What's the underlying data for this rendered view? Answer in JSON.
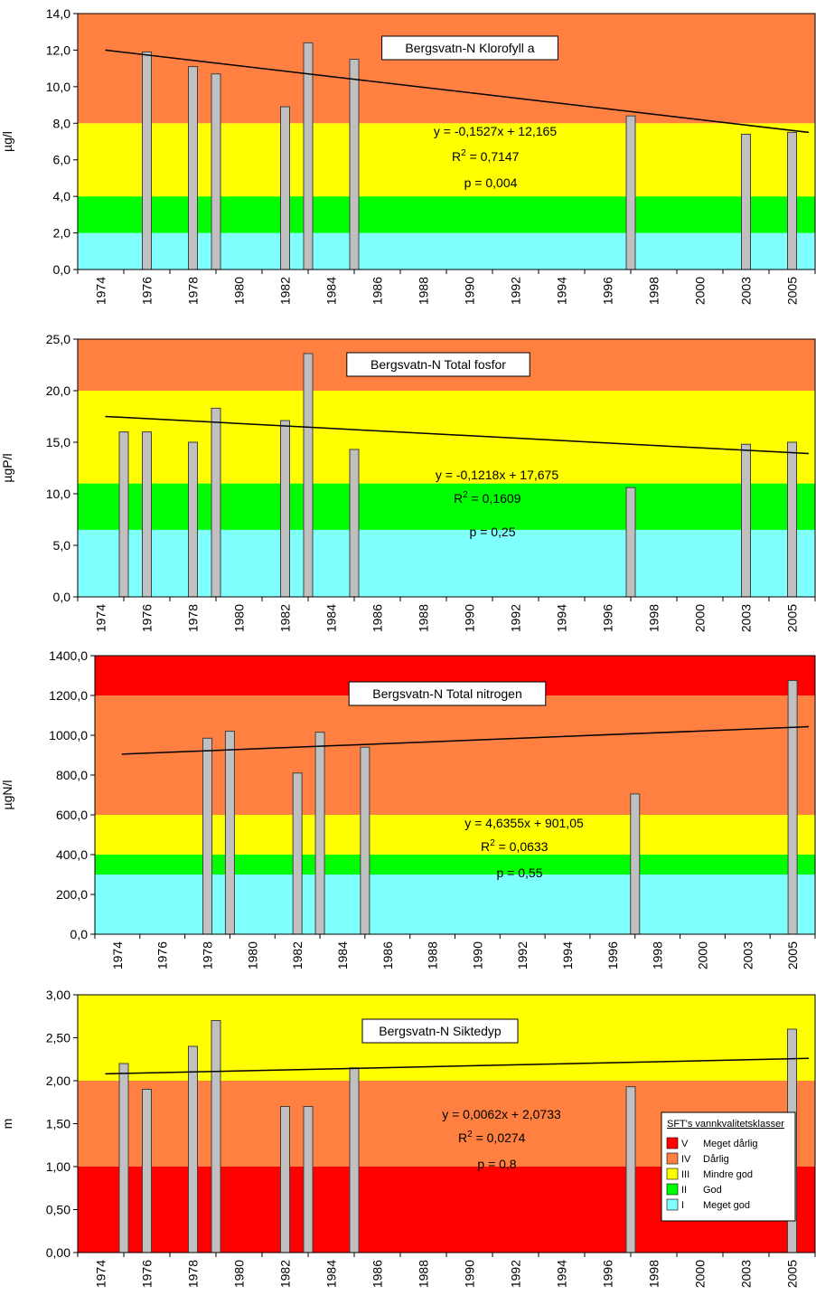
{
  "classes": [
    {
      "roman": "V",
      "name": "Meget dårlig",
      "color": "#ff0000"
    },
    {
      "roman": "IV",
      "name": "Dårlig",
      "color": "#ff8040"
    },
    {
      "roman": "III",
      "name": "Mindre god",
      "color": "#ffff00"
    },
    {
      "roman": "II",
      "name": "God",
      "color": "#00ff00"
    },
    {
      "roman": "I",
      "name": "Meget god",
      "color": "#80ffff"
    }
  ],
  "legend_title": "SFT's vannkvalitetsklasser",
  "chart_data": [
    {
      "type": "bar",
      "title": "Bergsvatn-N Klorofyll a",
      "ylabel": "µg/l",
      "ylim": [
        0,
        14
      ],
      "yticks": [
        "0,0",
        "2,0",
        "4,0",
        "6,0",
        "8,0",
        "10,0",
        "12,0",
        "14,0"
      ],
      "categories": [
        "1974",
        "1976",
        "1978",
        "1980",
        "1982",
        "1984",
        "1986",
        "1988",
        "1990",
        "1992",
        "1994",
        "1996",
        "1998",
        "2000",
        "2003",
        "2005"
      ],
      "bars": [
        {
          "year": 1976,
          "value": 11.9
        },
        {
          "year": 1978,
          "value": 11.1
        },
        {
          "year": 1979,
          "value": 10.7
        },
        {
          "year": 1982,
          "value": 8.9
        },
        {
          "year": 1983,
          "value": 12.4
        },
        {
          "year": 1985,
          "value": 11.5
        },
        {
          "year": 1997,
          "value": 8.4
        },
        {
          "year": 2003,
          "value": 7.4
        },
        {
          "year": 2005,
          "value": 7.5
        }
      ],
      "bands": [
        {
          "from": 0,
          "to": 2,
          "class": "I"
        },
        {
          "from": 2,
          "to": 4,
          "class": "II"
        },
        {
          "from": 4,
          "to": 8,
          "class": "III"
        },
        {
          "from": 8,
          "to": 14,
          "class": "IV"
        }
      ],
      "trend": {
        "start": 12.0,
        "end": 7.5
      },
      "equation": "y = -0,1527x + 12,165",
      "r2_label": "R",
      "r2_value": " = 0,7147",
      "p_label": "p = 0,004"
    },
    {
      "type": "bar",
      "title": "Bergsvatn-N Total fosfor",
      "ylabel": "µgP/l",
      "ylim": [
        0,
        25
      ],
      "yticks": [
        "0,0",
        "5,0",
        "10,0",
        "15,0",
        "20,0",
        "25,0"
      ],
      "categories": [
        "1974",
        "1976",
        "1978",
        "1980",
        "1982",
        "1984",
        "1986",
        "1988",
        "1990",
        "1992",
        "1994",
        "1996",
        "1998",
        "2000",
        "2003",
        "2005"
      ],
      "bars": [
        {
          "year": 1975,
          "value": 16.0
        },
        {
          "year": 1976,
          "value": 16.0
        },
        {
          "year": 1978,
          "value": 15.0
        },
        {
          "year": 1979,
          "value": 18.3
        },
        {
          "year": 1982,
          "value": 17.1
        },
        {
          "year": 1983,
          "value": 23.6
        },
        {
          "year": 1985,
          "value": 14.3
        },
        {
          "year": 1997,
          "value": 10.6
        },
        {
          "year": 2003,
          "value": 14.8
        },
        {
          "year": 2005,
          "value": 15.0
        }
      ],
      "bands": [
        {
          "from": 0,
          "to": 6.5,
          "class": "I"
        },
        {
          "from": 6.5,
          "to": 11,
          "class": "II"
        },
        {
          "from": 11,
          "to": 20,
          "class": "III"
        },
        {
          "from": 20,
          "to": 25,
          "class": "IV"
        }
      ],
      "trend": {
        "start": 17.5,
        "end": 13.9
      },
      "equation": "y = -0,1218x + 17,675",
      "r2_label": "R",
      "r2_value": " = 0,1609",
      "p_label": "p = 0,25"
    },
    {
      "type": "bar",
      "title": "Bergsvatn-N Total nitrogen",
      "ylabel": "µgN/l",
      "ylim": [
        0,
        1400
      ],
      "yticks": [
        "0,0",
        "200,0",
        "400,0",
        "600,0",
        "800,0",
        "1000,0",
        "1200,0",
        "1400,0"
      ],
      "categories": [
        "1974",
        "1976",
        "1978",
        "1980",
        "1982",
        "1984",
        "1986",
        "1988",
        "1990",
        "1992",
        "1994",
        "1996",
        "1998",
        "2000",
        "2003",
        "2005"
      ],
      "bars": [
        {
          "year": 1978,
          "value": 985
        },
        {
          "year": 1979,
          "value": 1020
        },
        {
          "year": 1982,
          "value": 810
        },
        {
          "year": 1983,
          "value": 1015
        },
        {
          "year": 1985,
          "value": 940
        },
        {
          "year": 1997,
          "value": 705
        },
        {
          "year": 2005,
          "value": 1275
        }
      ],
      "bands": [
        {
          "from": 0,
          "to": 300,
          "class": "I"
        },
        {
          "from": 300,
          "to": 400,
          "class": "II"
        },
        {
          "from": 400,
          "to": 600,
          "class": "III"
        },
        {
          "from": 600,
          "to": 1200,
          "class": "IV"
        },
        {
          "from": 1200,
          "to": 1400,
          "class": "V"
        }
      ],
      "trend": {
        "start": 905,
        "end": 1043
      },
      "equation": "y = 4,6355x + 901,05",
      "r2_label": "R",
      "r2_value": " = 0,0633",
      "p_label": "p = 0,55"
    },
    {
      "type": "bar",
      "title": "Bergsvatn-N Siktedyp",
      "ylabel": "m",
      "ylim": [
        0,
        3
      ],
      "yticks": [
        "0,00",
        "0,50",
        "1,00",
        "1,50",
        "2,00",
        "2,50",
        "3,00"
      ],
      "categories": [
        "1974",
        "1976",
        "1978",
        "1980",
        "1982",
        "1984",
        "1986",
        "1988",
        "1990",
        "1992",
        "1994",
        "1996",
        "1998",
        "2000",
        "2003",
        "2005"
      ],
      "bars": [
        {
          "year": 1975,
          "value": 2.2
        },
        {
          "year": 1976,
          "value": 1.9
        },
        {
          "year": 1978,
          "value": 2.4
        },
        {
          "year": 1979,
          "value": 2.7
        },
        {
          "year": 1982,
          "value": 1.7
        },
        {
          "year": 1983,
          "value": 1.7
        },
        {
          "year": 1985,
          "value": 2.15
        },
        {
          "year": 1997,
          "value": 1.93
        },
        {
          "year": 2005,
          "value": 2.6
        }
      ],
      "bands": [
        {
          "from": 0,
          "to": 1,
          "class": "V"
        },
        {
          "from": 1,
          "to": 2,
          "class": "IV"
        },
        {
          "from": 2,
          "to": 3,
          "class": "III"
        }
      ],
      "trend": {
        "start": 2.08,
        "end": 2.26
      },
      "equation": "y = 0,0062x + 2,0733",
      "r2_label": "R",
      "r2_value": " = 0,0274",
      "p_label": "p = 0,8",
      "show_legend": true
    }
  ]
}
